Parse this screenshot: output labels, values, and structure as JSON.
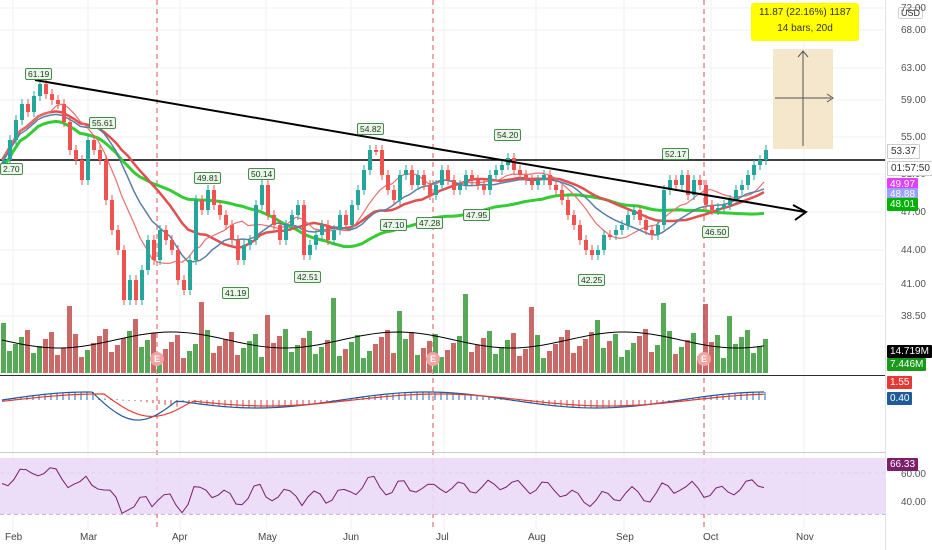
{
  "currency": "USD",
  "price_scale": [
    "72.00",
    "68.00",
    "63.00",
    "59.00",
    "55.00",
    "51.00",
    "47.00",
    "44.00",
    "41.00",
    "38.50"
  ],
  "tags": [
    {
      "text": "53.37",
      "color": "#ffffff",
      "text_color": "#333333"
    },
    {
      "text": "01:57:50",
      "color": "#ffffff",
      "text_color": "#333333"
    },
    {
      "text": "49.97",
      "color": "#e040fb"
    },
    {
      "text": "48.88",
      "color": "#9aa0ff"
    },
    {
      "text": "48.01",
      "color": "#00b300"
    },
    {
      "text": "14.719M",
      "color": "#000000"
    },
    {
      "text": "7.446M",
      "color": "#1a9a1a"
    },
    {
      "text": "1.55",
      "color": "#e53935"
    },
    {
      "text": "0.40",
      "color": "#1e5b9a"
    },
    {
      "text": "66.33",
      "color": "#7b1f6b"
    }
  ],
  "macd_scale": [],
  "rsi_scale": [
    "60.00",
    "40.00"
  ],
  "x_axis": [
    "Feb",
    "Mar",
    "Apr",
    "May",
    "Jun",
    "Jul",
    "Aug",
    "Sep",
    "Oct",
    "Nov"
  ],
  "measure": {
    "line1": "11.87 (22.16%) 1187",
    "line2": "14 bars, 20d"
  },
  "notes": [
    "61.19",
    "55.61",
    "49.81",
    "50.14",
    "41.19",
    "42.51",
    "54.82",
    "47.10",
    "47.28",
    "47.95",
    "54.20",
    "42.25",
    "52.17",
    "46.50"
  ],
  "left_label": "2.70",
  "earnings": [
    "E",
    "E",
    "E"
  ],
  "colors": {
    "up": "#26a69a",
    "down": "#ef5350",
    "vol_up": "#3a9a3a",
    "vol_down": "#c0504d",
    "ma_green": "#33cc33",
    "ma_red": "#e05050",
    "ma_blue": "#5b7fa6",
    "rsi": "#7b1f6b",
    "rsi_band": "#e8d6f5"
  },
  "chart_data": {
    "type": "candlestick",
    "x": [
      "Feb",
      "Mar",
      "Apr",
      "May",
      "Jun",
      "Jul",
      "Aug",
      "Sep",
      "Oct",
      "Nov"
    ],
    "close_approx": [
      52.7,
      60.0,
      46.0,
      49.0,
      52.0,
      51.5,
      50.5,
      44.5,
      50.0,
      53.37
    ],
    "ylim": [
      36.5,
      72.0
    ],
    "last_close": 53.37,
    "moving_averages": {
      "ma1": 49.97,
      "ma2": 48.88,
      "ma3": 48.01
    },
    "volume_last": "14.719M",
    "volume_ma": "7.446M",
    "macd": {
      "macd": 1.55,
      "signal": 0.4
    },
    "rsi": 66.33,
    "rsi_levels": [
      60,
      40
    ]
  }
}
